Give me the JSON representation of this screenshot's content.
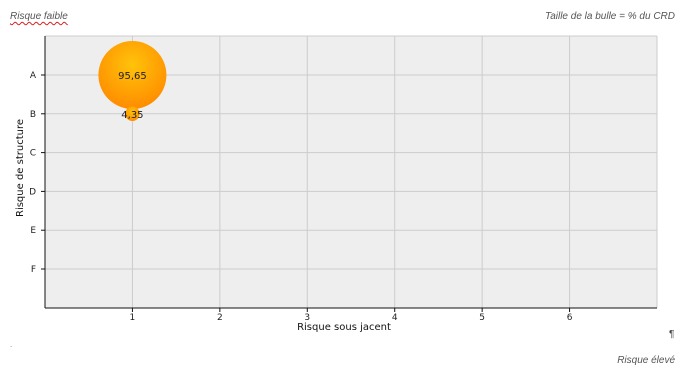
{
  "document": {
    "note_top_left": "Risque faible",
    "note_top_right": "Taille de la bulle = % du CRD",
    "note_bottom_right": "Risque élevé",
    "pilcrow": "¶",
    "dot": "."
  },
  "chart_data": {
    "type": "scatter",
    "subtype": "bubble",
    "xlabel": "Risque sous jacent",
    "ylabel": "Risque de structure",
    "x_ticks": [
      1,
      2,
      3,
      4,
      5,
      6
    ],
    "xlim": [
      0,
      7
    ],
    "y_categories": [
      "A",
      "B",
      "C",
      "D",
      "E",
      "F"
    ],
    "grid": true,
    "legend": "none",
    "colors": {
      "plot_background": "#eeeeee",
      "grid": "#cccccc",
      "bubble_light": "#ffc30a",
      "bubble_dark": "#ff8c00"
    },
    "points": [
      {
        "x": 1,
        "y": "A",
        "size": 95.65,
        "label": "95,65"
      },
      {
        "x": 1,
        "y": "B",
        "size": 4.35,
        "label": "4,35"
      }
    ]
  }
}
